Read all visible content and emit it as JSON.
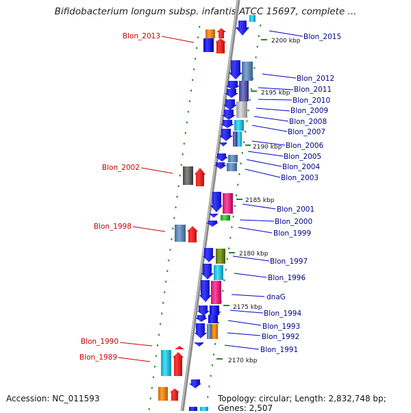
{
  "title": "Bifidobacterium longum subsp. infantis ATCC 15697, complete ...",
  "accession_text": "Accession: NC_011593",
  "stats_text": "Topology: circular; Length: 2,832,748 bp; Genes: 2,507",
  "colors": {
    "forward": "#0000ee",
    "gene_label_right": "#00008b",
    "gene_label_left": "#cc0000",
    "tick": "#228b22",
    "backbone": "#808080"
  },
  "ruler": [
    {
      "label": "2200 kbp"
    },
    {
      "label": "2195 kbp"
    },
    {
      "label": "2190 kbp"
    },
    {
      "label": "2185 kbp"
    },
    {
      "label": "2180 kbp"
    },
    {
      "label": "2175 kbp"
    },
    {
      "label": "2170 kbp"
    }
  ],
  "right_labels": [
    "Blon_2015",
    "Blon_2012",
    "Blon_2011",
    "Blon_2010",
    "Blon_2009",
    "Blon_2008",
    "Blon_2007",
    "Blon_2006",
    "Blon_2005",
    "Blon_2004",
    "Blon_2003",
    "Blon_2001",
    "Blon_2000",
    "Blon_1999",
    "Blon_1997",
    "Blon_1996",
    "dnaG",
    "Blon_1994",
    "Blon_1993",
    "Blon_1992",
    "Blon_1991"
  ],
  "left_labels": [
    "Blon_2013",
    "Blon_2002",
    "Blon_1998",
    "Blon_1990",
    "Blon_1989"
  ]
}
